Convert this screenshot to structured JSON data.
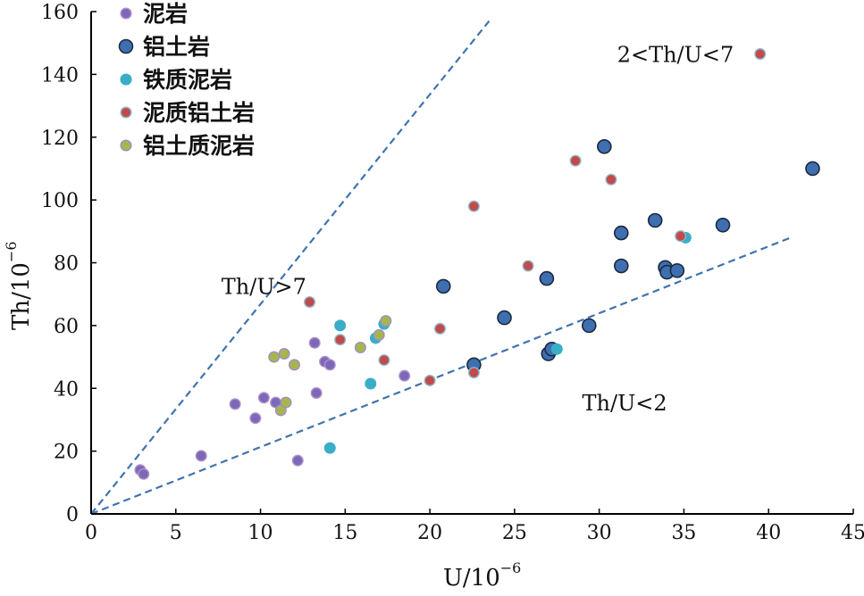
{
  "chart_data": {
    "type": "scatter",
    "xlabel": "U/10",
    "xlabel_exp": "−6",
    "ylabel": "Th/10",
    "ylabel_exp": "−6",
    "xlim": [
      0,
      45
    ],
    "ylim": [
      0,
      160
    ],
    "x_ticks": [
      "0",
      "5",
      "10",
      "15",
      "20",
      "25",
      "30",
      "35",
      "40",
      "45"
    ],
    "y_ticks": [
      "0",
      "20",
      "40",
      "60",
      "80",
      "100",
      "120",
      "140",
      "160"
    ],
    "grid": false,
    "legend_position": "top-left",
    "annotations": [
      {
        "text": "2<Th/U<7",
        "x": 34.5,
        "y": 144
      },
      {
        "text": "Th/U>7",
        "x": 10.2,
        "y": 70
      },
      {
        "text": "Th/U<2",
        "x": 31.5,
        "y": 33
      }
    ],
    "reference_lines": [
      {
        "name": "Th/U=7",
        "x": [
          0,
          23.5
        ],
        "y": [
          0,
          157
        ]
      },
      {
        "name": "Th/U=2",
        "x": [
          0,
          41.3
        ],
        "y": [
          0,
          88
        ]
      }
    ],
    "series": [
      {
        "name": "泥岩",
        "color": "#7b68b8",
        "edge": "#b08fc8",
        "size": "small",
        "points": [
          [
            2.9,
            14
          ],
          [
            3.1,
            12.7
          ],
          [
            6.5,
            18.5
          ],
          [
            8.5,
            35
          ],
          [
            9.7,
            30.5
          ],
          [
            10.2,
            37
          ],
          [
            10.9,
            35.5
          ],
          [
            12.2,
            17
          ],
          [
            13.2,
            54.5
          ],
          [
            13.3,
            38.5
          ],
          [
            13.8,
            48.5
          ],
          [
            14.1,
            47.5
          ],
          [
            18.5,
            44
          ]
        ]
      },
      {
        "name": "铝土岩",
        "color": "#3f6fb0",
        "edge": "#1a2a40",
        "size": "large",
        "points": [
          [
            20.8,
            72.5
          ],
          [
            22.6,
            47.5
          ],
          [
            24.4,
            62.5
          ],
          [
            26.9,
            75
          ],
          [
            27,
            51
          ],
          [
            27.2,
            52.5
          ],
          [
            29.4,
            60
          ],
          [
            30.3,
            117
          ],
          [
            31.3,
            89.5
          ],
          [
            31.3,
            79
          ],
          [
            33.3,
            93.5
          ],
          [
            33.9,
            78.5
          ],
          [
            34,
            77
          ],
          [
            34.6,
            77.5
          ],
          [
            37.3,
            92
          ],
          [
            42.6,
            110
          ]
        ]
      },
      {
        "name": "铁质泥岩",
        "color": "#3aaec8",
        "edge": "#3aaec8",
        "size": "small",
        "points": [
          [
            14.1,
            21
          ],
          [
            14.7,
            60
          ],
          [
            16.5,
            41.5
          ],
          [
            16.8,
            56
          ],
          [
            17.3,
            60.5
          ],
          [
            27.5,
            52.5
          ],
          [
            35.1,
            88
          ]
        ]
      },
      {
        "name": "泥质铝土岩",
        "color": "#c24a4a",
        "edge": "#8fb8c8",
        "size": "small",
        "points": [
          [
            12.9,
            67.5
          ],
          [
            14.7,
            55.5
          ],
          [
            17.3,
            49
          ],
          [
            20,
            42.5
          ],
          [
            20.6,
            59
          ],
          [
            22.6,
            98
          ],
          [
            22.6,
            45
          ],
          [
            25.8,
            79
          ],
          [
            28.6,
            112.5
          ],
          [
            30.7,
            106.5
          ],
          [
            34.8,
            88.5
          ],
          [
            39.5,
            146.5
          ]
        ]
      },
      {
        "name": "铝土质泥岩",
        "color": "#a6b74a",
        "edge": "#a48cc8",
        "size": "small",
        "points": [
          [
            10.8,
            50
          ],
          [
            11.2,
            33
          ],
          [
            11.4,
            51
          ],
          [
            11.5,
            35.5
          ],
          [
            12,
            47.5
          ],
          [
            15.9,
            53
          ],
          [
            17,
            57
          ],
          [
            17.4,
            61.5
          ]
        ]
      }
    ]
  }
}
